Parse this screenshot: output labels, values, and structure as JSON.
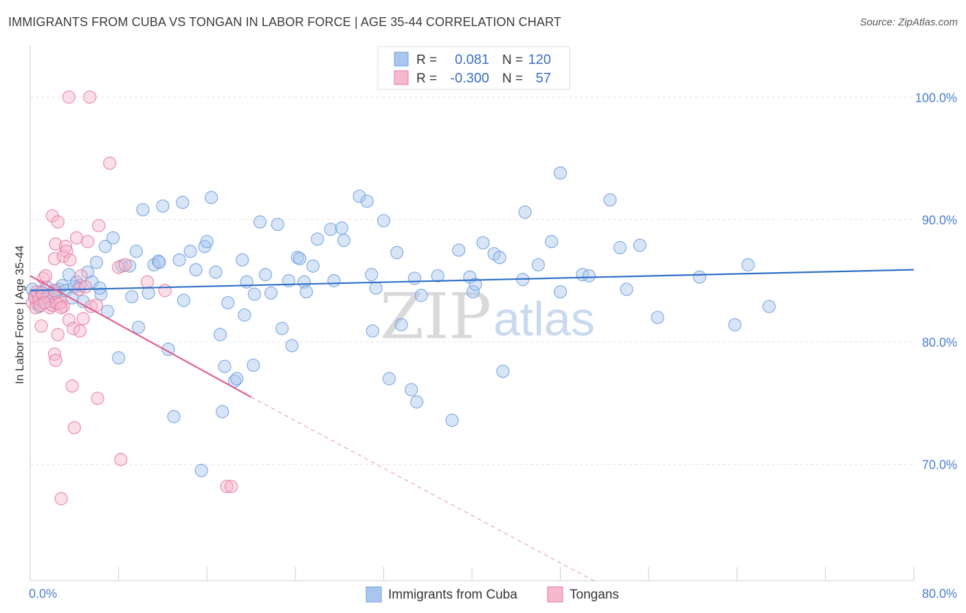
{
  "title": "IMMIGRANTS FROM CUBA VS TONGAN IN LABOR FORCE | AGE 35-44 CORRELATION CHART",
  "source": "Source: ZipAtlas.com",
  "watermark": {
    "zip": "ZIP",
    "atlas": "atlas"
  },
  "colors": {
    "blue": "#6fa0e0",
    "blue_fill": "#a9c6ee",
    "pink": "#e67aa0",
    "pink_fill": "#f5b8cd",
    "blue_line": "#2e6ec8",
    "pink_line": "#e0608e"
  },
  "chart_data": {
    "type": "scatter",
    "xlabel": "",
    "ylabel": "In Labor Force | Age 35-44",
    "xlim": [
      0,
      80
    ],
    "ylim": [
      60.5,
      104
    ],
    "x_tick_labels": [
      "0.0%",
      "80.0%"
    ],
    "y_ticks": [
      70,
      80,
      90,
      100
    ],
    "y_tick_labels": [
      "70.0%",
      "80.0%",
      "90.0%",
      "100.0%"
    ],
    "legend": {
      "placement": "top-center",
      "rows": [
        {
          "r_label": "R =",
          "r_value": "0.081",
          "n_label": "N =",
          "n_value": "120"
        },
        {
          "r_label": "R =",
          "r_value": "-0.300",
          "n_label": "N =",
          "n_value": "57"
        }
      ]
    },
    "series": [
      {
        "name": "Immigrants from Cuba",
        "trend": {
          "x": [
            0,
            80
          ],
          "y": [
            84.2,
            85.9
          ],
          "dashed_extension": false
        },
        "points": [
          [
            0.2,
            84.3
          ],
          [
            0.4,
            83.8
          ],
          [
            0.6,
            83.2
          ],
          [
            0.8,
            82.9
          ],
          [
            1.0,
            84.1
          ],
          [
            1.2,
            83.5
          ],
          [
            1.5,
            84.5
          ],
          [
            1.8,
            83.9
          ],
          [
            2.0,
            83.0
          ],
          [
            2.2,
            84.2
          ],
          [
            2.6,
            84.3
          ],
          [
            2.9,
            84.6
          ],
          [
            3.2,
            84.2
          ],
          [
            3.5,
            85.5
          ],
          [
            3.8,
            83.6
          ],
          [
            4.0,
            84.5
          ],
          [
            4.2,
            84.9
          ],
          [
            4.5,
            84.6
          ],
          [
            4.8,
            83.3
          ],
          [
            5.2,
            85.7
          ],
          [
            5.6,
            84.9
          ],
          [
            6.0,
            86.5
          ],
          [
            6.4,
            83.9
          ],
          [
            6.8,
            87.8
          ],
          [
            7.0,
            82.5
          ],
          [
            7.5,
            88.5
          ],
          [
            8.0,
            78.7
          ],
          [
            8.3,
            86.2
          ],
          [
            9.0,
            86.2
          ],
          [
            9.2,
            83.7
          ],
          [
            9.6,
            87.4
          ],
          [
            9.8,
            81.2
          ],
          [
            10.2,
            90.8
          ],
          [
            10.7,
            84.0
          ],
          [
            11.2,
            86.3
          ],
          [
            11.6,
            86.6
          ],
          [
            12.0,
            91.1
          ],
          [
            12.5,
            79.4
          ],
          [
            13.0,
            73.9
          ],
          [
            13.5,
            86.7
          ],
          [
            13.8,
            91.4
          ],
          [
            13.9,
            83.4
          ],
          [
            14.5,
            87.4
          ],
          [
            15.0,
            85.9
          ],
          [
            15.5,
            69.5
          ],
          [
            15.8,
            87.8
          ],
          [
            16.0,
            88.2
          ],
          [
            16.4,
            91.8
          ],
          [
            16.8,
            85.7
          ],
          [
            17.2,
            80.6
          ],
          [
            17.4,
            74.3
          ],
          [
            17.6,
            78.0
          ],
          [
            17.9,
            83.2
          ],
          [
            18.5,
            76.8
          ],
          [
            18.7,
            77.0
          ],
          [
            19.2,
            86.7
          ],
          [
            19.4,
            82.2
          ],
          [
            19.6,
            84.9
          ],
          [
            20.2,
            78.1
          ],
          [
            20.3,
            83.9
          ],
          [
            20.8,
            89.8
          ],
          [
            21.3,
            85.5
          ],
          [
            21.8,
            84.0
          ],
          [
            22.4,
            89.6
          ],
          [
            22.8,
            81.1
          ],
          [
            23.4,
            85.0
          ],
          [
            23.7,
            79.7
          ],
          [
            24.2,
            86.9
          ],
          [
            24.4,
            86.8
          ],
          [
            24.8,
            84.9
          ],
          [
            25.0,
            84.1
          ],
          [
            25.6,
            86.2
          ],
          [
            26.0,
            88.4
          ],
          [
            27.2,
            89.2
          ],
          [
            27.5,
            85.0
          ],
          [
            28.2,
            89.3
          ],
          [
            28.4,
            88.3
          ],
          [
            29.8,
            91.9
          ],
          [
            30.5,
            91.5
          ],
          [
            30.9,
            85.5
          ],
          [
            31.0,
            80.9
          ],
          [
            31.3,
            84.4
          ],
          [
            32.0,
            89.9
          ],
          [
            32.5,
            77.0
          ],
          [
            33.2,
            87.3
          ],
          [
            33.6,
            81.4
          ],
          [
            34.5,
            76.1
          ],
          [
            34.8,
            85.2
          ],
          [
            35.0,
            75.1
          ],
          [
            35.4,
            83.8
          ],
          [
            36.9,
            85.4
          ],
          [
            38.2,
            73.6
          ],
          [
            38.8,
            87.5
          ],
          [
            39.8,
            85.3
          ],
          [
            40.1,
            84.1
          ],
          [
            40.3,
            84.7
          ],
          [
            41.0,
            88.1
          ],
          [
            42.0,
            87.2
          ],
          [
            42.5,
            86.9
          ],
          [
            42.8,
            77.6
          ],
          [
            44.6,
            85.1
          ],
          [
            44.8,
            90.6
          ],
          [
            46.0,
            86.3
          ],
          [
            47.2,
            88.2
          ],
          [
            48.0,
            84.1
          ],
          [
            48.0,
            93.8
          ],
          [
            50.0,
            85.5
          ],
          [
            50.6,
            85.4
          ],
          [
            52.5,
            91.6
          ],
          [
            53.4,
            87.7
          ],
          [
            54.0,
            84.3
          ],
          [
            55.2,
            87.9
          ],
          [
            56.8,
            82.0
          ],
          [
            60.6,
            85.3
          ],
          [
            63.8,
            81.4
          ],
          [
            65.0,
            86.3
          ],
          [
            66.9,
            82.9
          ],
          [
            6.3,
            84.4
          ],
          [
            11.7,
            86.5
          ],
          [
            2.3,
            84.0
          ]
        ]
      },
      {
        "name": "Tongans",
        "trend": {
          "x": [
            0,
            20
          ],
          "y": [
            85.4,
            75.5
          ],
          "dashed_extension": true,
          "dash_to": [
            51,
            60.5
          ]
        },
        "points": [
          [
            0.2,
            83.2
          ],
          [
            0.4,
            83.6
          ],
          [
            0.5,
            82.8
          ],
          [
            0.6,
            84.1
          ],
          [
            0.8,
            83.5
          ],
          [
            1.0,
            81.3
          ],
          [
            1.2,
            85.2
          ],
          [
            1.4,
            85.4
          ],
          [
            1.6,
            83.6
          ],
          [
            1.8,
            82.8
          ],
          [
            2.0,
            83.0
          ],
          [
            2.2,
            79.0
          ],
          [
            2.3,
            78.5
          ],
          [
            2.5,
            80.6
          ],
          [
            2.8,
            83.2
          ],
          [
            3.0,
            82.9
          ],
          [
            2.0,
            90.3
          ],
          [
            2.3,
            88.0
          ],
          [
            2.2,
            86.8
          ],
          [
            2.2,
            84.2
          ],
          [
            2.3,
            83.2
          ],
          [
            2.5,
            89.8
          ],
          [
            2.6,
            83.1
          ],
          [
            2.8,
            82.8
          ],
          [
            3.0,
            87.0
          ],
          [
            3.2,
            87.8
          ],
          [
            3.3,
            87.4
          ],
          [
            3.5,
            81.8
          ],
          [
            3.6,
            86.7
          ],
          [
            3.8,
            76.4
          ],
          [
            3.9,
            81.1
          ],
          [
            4.0,
            73.0
          ],
          [
            4.2,
            88.5
          ],
          [
            4.4,
            84.3
          ],
          [
            4.5,
            80.9
          ],
          [
            4.6,
            85.4
          ],
          [
            4.8,
            81.9
          ],
          [
            5.0,
            84.5
          ],
          [
            5.2,
            88.2
          ],
          [
            5.5,
            82.9
          ],
          [
            6.0,
            83.0
          ],
          [
            6.1,
            75.4
          ],
          [
            6.2,
            89.5
          ],
          [
            7.2,
            94.6
          ],
          [
            8.0,
            86.1
          ],
          [
            8.2,
            70.4
          ],
          [
            8.6,
            86.3
          ],
          [
            10.6,
            84.9
          ],
          [
            12.2,
            84.2
          ],
          [
            17.8,
            68.2
          ],
          [
            18.2,
            68.2
          ],
          [
            2.8,
            67.2
          ],
          [
            3.5,
            100.0
          ],
          [
            5.4,
            100.0
          ],
          [
            0.9,
            83.0
          ],
          [
            1.1,
            84.0
          ],
          [
            1.3,
            83.2
          ]
        ]
      }
    ]
  }
}
